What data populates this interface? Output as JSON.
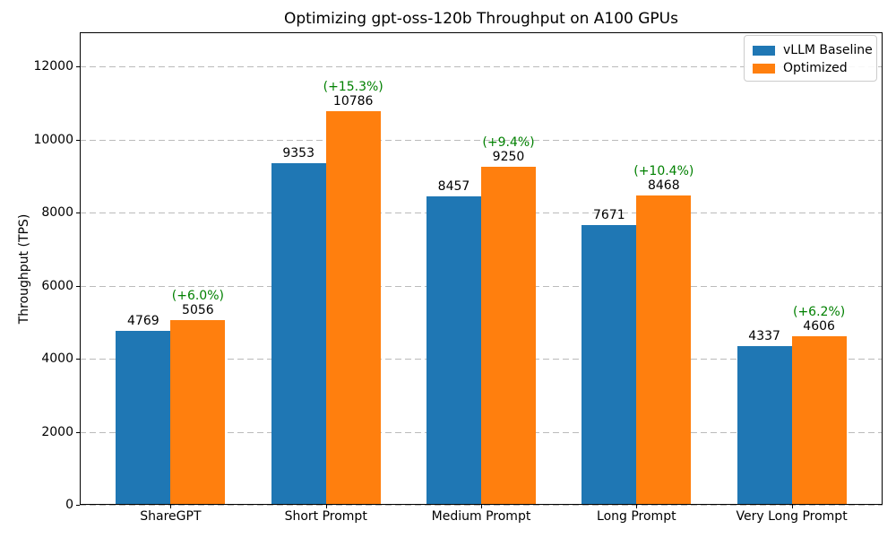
{
  "chart_data": {
    "type": "bar",
    "title": "Optimizing gpt-oss-120b Throughput on A100 GPUs",
    "ylabel": "Throughput (TPS)",
    "xlabel": "",
    "categories": [
      "ShareGPT",
      "Short Prompt",
      "Medium Prompt",
      "Long Prompt",
      "Very Long Prompt"
    ],
    "series": [
      {
        "name": "vLLM Baseline",
        "color": "#1f77b4",
        "values": [
          4769,
          9353,
          8457,
          7671,
          4337
        ]
      },
      {
        "name": "Optimized",
        "color": "#ff7f0e",
        "values": [
          5056,
          10786,
          9250,
          8468,
          4606
        ]
      }
    ],
    "improvement_labels": [
      "(+6.0%)",
      "(+15.3%)",
      "(+9.4%)",
      "(+10.4%)",
      "(+6.2%)"
    ],
    "improvement_color": "#008000",
    "yticks": [
      0,
      2000,
      4000,
      6000,
      8000,
      10000,
      12000
    ],
    "ylim": [
      0,
      12940
    ],
    "grid": "horizontal-dashed",
    "legend_position": "upper-right"
  }
}
